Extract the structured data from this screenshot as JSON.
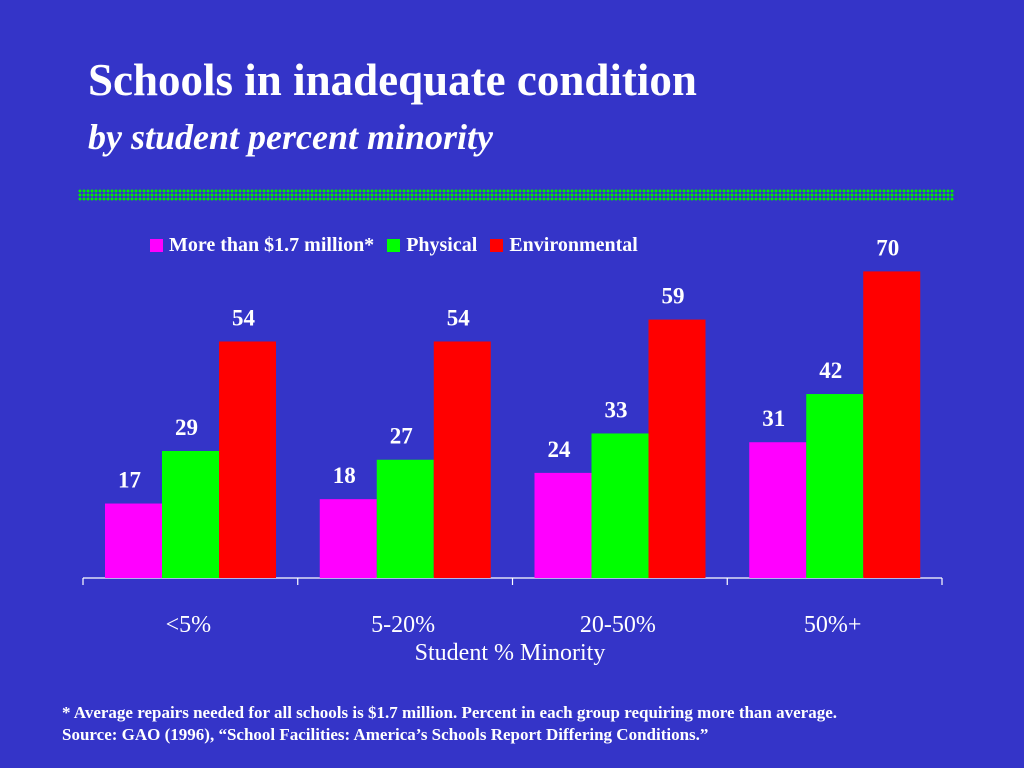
{
  "slide": {
    "title": "Schools in inadequate condition",
    "subtitle": "by student percent minority",
    "footnote_line1": "* Average repairs needed for all schools is $1.7 million. Percent in each group requiring more than average.",
    "footnote_line2": "Source: GAO (1996), “School Facilities: America’s Schools Report Differing Conditions.”"
  },
  "colors": {
    "background": "#3434c8",
    "divider": "#00ee00"
  },
  "chart_data": {
    "type": "bar",
    "title": "",
    "xlabel": "Student % Minority",
    "ylabel": "",
    "categories": [
      "<5%",
      "5-20%",
      "20-50%",
      "50%+"
    ],
    "series": [
      {
        "name": "More than $1.7 million*",
        "color": "#ff00ff",
        "values": [
          17,
          18,
          24,
          31
        ]
      },
      {
        "name": "Physical",
        "color": "#00ff00",
        "values": [
          29,
          27,
          33,
          42
        ]
      },
      {
        "name": "Environmental",
        "color": "#ff0000",
        "values": [
          54,
          54,
          59,
          70
        ]
      }
    ],
    "ylim": [
      0,
      70
    ],
    "grid": false,
    "legend_position": "top",
    "data_labels": true
  }
}
